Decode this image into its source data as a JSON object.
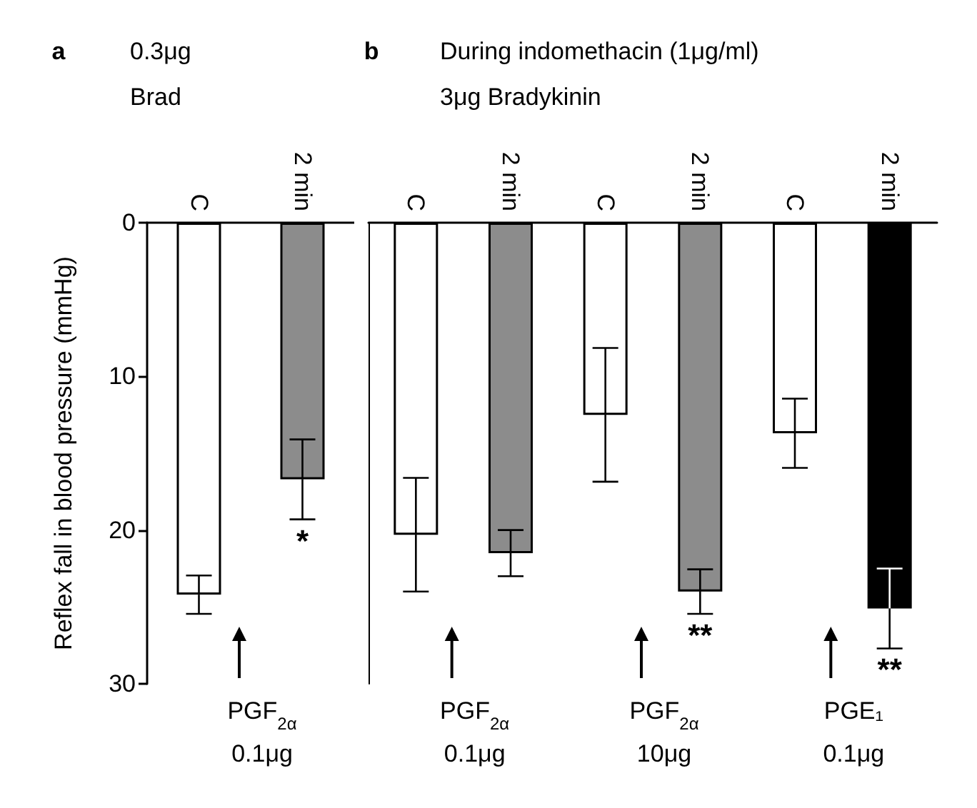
{
  "chart_data": [
    {
      "type": "bar",
      "ylabel": "Reflex fall in blood pressure (mmHg)",
      "categories": [
        "C",
        "2 min"
      ],
      "values": [
        24.2,
        16.7
      ],
      "errors": [
        1.25,
        2.6
      ],
      "colors": [
        "#ffffff",
        "#8c8c8c"
      ],
      "ylim": [
        30,
        0
      ],
      "yticks": [
        0,
        10,
        20,
        30
      ],
      "annotations": [
        "a",
        "0.3μg\nBrad",
        "*",
        "PGF$_{2α}$\n0.1μg"
      ]
    },
    {
      "type": "bar",
      "categories": [
        "C",
        "2 min",
        "C",
        "2 min",
        "C",
        "2 min"
      ],
      "values": [
        20.3,
        21.5,
        12.5,
        24.0,
        13.7,
        25.1
      ],
      "errors": [
        3.7,
        1.5,
        4.35,
        1.45,
        2.25,
        2.6
      ],
      "colors": [
        "#ffffff",
        "#8c8c8c",
        "#ffffff",
        "#8c8c8c",
        "#ffffff",
        "#000000"
      ],
      "ylim": [
        30,
        0
      ],
      "tick_labels": "x",
      "annotations": [
        "b",
        "During indomethacin (1μg/ml)",
        "3μg Bradykinin",
        "**",
        "**",
        "PGF$_{2α}$\n0.1μg",
        "PGF$_{2α}$\n10μg",
        "PGE₁\n0.1μg"
      ]
    }
  ]
}
